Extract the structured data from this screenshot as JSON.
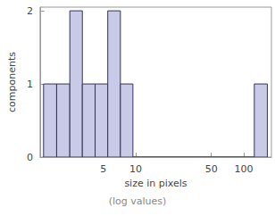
{
  "chart_data": {
    "type": "histogram",
    "xlabel": "size in pixels",
    "annotations": [
      {
        "text": "(log values)"
      }
    ],
    "ylabel": "components",
    "bins": [
      1.4,
      1.85,
      2.45,
      3.2,
      4.2,
      5.5,
      7.2,
      9.4,
      125,
      165
    ],
    "counts": [
      1,
      1,
      2,
      1,
      1,
      2,
      1,
      0,
      1
    ],
    "color": "#c9c9e8",
    "log": "x",
    "xlim": [
      1.3,
      180
    ],
    "xticks": [
      5,
      10,
      50,
      100
    ],
    "ylim": [
      0,
      2.05
    ],
    "yticks": [
      0,
      1,
      2
    ],
    "grid": false
  }
}
